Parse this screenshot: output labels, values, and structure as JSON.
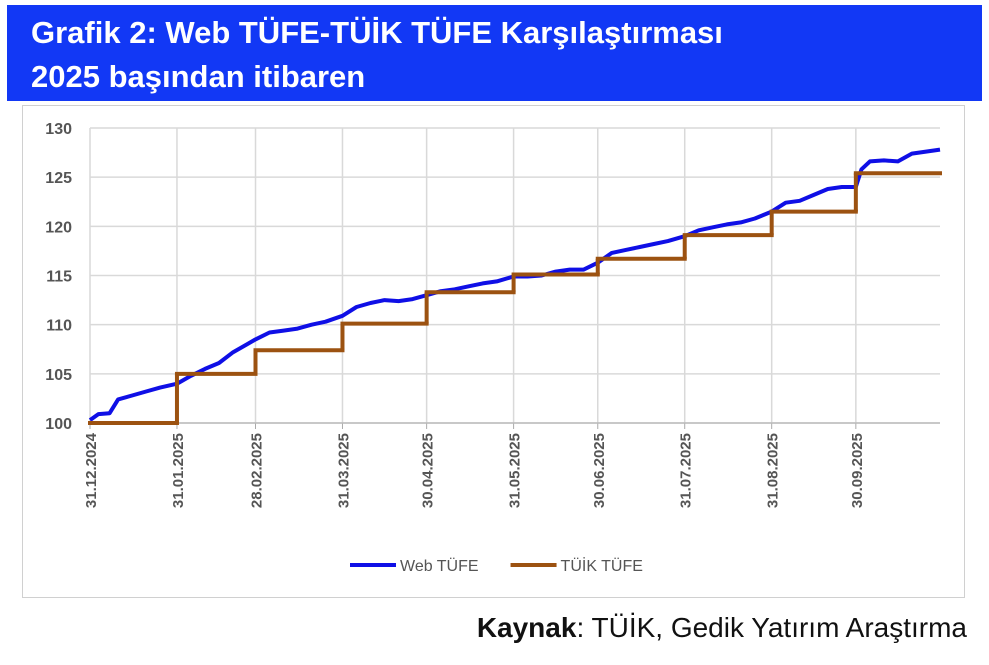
{
  "chart_data": {
    "type": "line",
    "title": "Grafik 2: Web TÜFE-TÜİK TÜFE Karşılaştırması",
    "subtitle": "2025 başından itibaren",
    "source_label": "Kaynak",
    "source": ": TÜİK, Gedik Yatırım Araştırma",
    "xlim": [
      "31.12.2024",
      "30.10.2025"
    ],
    "xticks": [
      "31.12.2024",
      "31.01.2025",
      "28.02.2025",
      "31.03.2025",
      "30.04.2025",
      "31.05.2025",
      "30.06.2025",
      "31.07.2025",
      "31.08.2025",
      "30.09.2025"
    ],
    "ylim": [
      100,
      130
    ],
    "yticks": [
      100,
      105,
      110,
      115,
      120,
      125,
      130
    ],
    "grid": true,
    "legend": "bottom",
    "series": [
      {
        "name": "Web TÜFE",
        "color": "#0f0fe6",
        "x": [
          "31.12.2024",
          "03.01.2025",
          "07.01.2025",
          "10.01.2025",
          "15.01.2025",
          "20.01.2025",
          "25.01.2025",
          "31.01.2025",
          "05.02.2025",
          "10.02.2025",
          "15.02.2025",
          "20.02.2025",
          "25.02.2025",
          "28.02.2025",
          "05.03.2025",
          "10.03.2025",
          "15.03.2025",
          "20.03.2025",
          "25.03.2025",
          "31.03.2025",
          "05.04.2025",
          "10.04.2025",
          "15.04.2025",
          "20.04.2025",
          "25.04.2025",
          "30.04.2025",
          "05.05.2025",
          "10.05.2025",
          "15.05.2025",
          "20.05.2025",
          "25.05.2025",
          "31.05.2025",
          "05.06.2025",
          "10.06.2025",
          "15.06.2025",
          "20.06.2025",
          "25.06.2025",
          "30.06.2025",
          "05.07.2025",
          "10.07.2025",
          "15.07.2025",
          "20.07.2025",
          "25.07.2025",
          "31.07.2025",
          "05.08.2025",
          "10.08.2025",
          "15.08.2025",
          "20.08.2025",
          "25.08.2025",
          "31.08.2025",
          "05.09.2025",
          "10.09.2025",
          "15.09.2025",
          "20.09.2025",
          "25.09.2025",
          "30.09.2025",
          "02.10.2025",
          "05.10.2025",
          "10.10.2025",
          "15.10.2025",
          "20.10.2025",
          "25.10.2025",
          "30.10.2025"
        ],
        "values": [
          100.3,
          100.9,
          101.0,
          102.4,
          102.8,
          103.2,
          103.6,
          104.0,
          104.8,
          105.5,
          106.1,
          107.2,
          108.0,
          108.5,
          109.2,
          109.4,
          109.6,
          110.0,
          110.3,
          110.9,
          111.8,
          112.2,
          112.5,
          112.4,
          112.6,
          113.0,
          113.4,
          113.6,
          113.9,
          114.2,
          114.4,
          114.9,
          114.9,
          115.0,
          115.4,
          115.6,
          115.6,
          116.3,
          117.3,
          117.6,
          117.9,
          118.2,
          118.5,
          119.0,
          119.6,
          119.9,
          120.2,
          120.4,
          120.8,
          121.5,
          122.4,
          122.6,
          123.2,
          123.8,
          124.0,
          124.0,
          125.8,
          126.6,
          126.7,
          126.6,
          127.4,
          127.6,
          127.8
        ]
      },
      {
        "name": "TÜİK TÜFE",
        "color": "#9c5211",
        "step": true,
        "x": [
          "31.12.2024",
          "31.01.2025",
          "28.02.2025",
          "31.03.2025",
          "30.04.2025",
          "31.05.2025",
          "30.06.2025",
          "31.07.2025",
          "31.08.2025",
          "30.09.2025",
          "30.10.2025"
        ],
        "values": [
          100,
          105.0,
          107.4,
          110.1,
          113.3,
          115.1,
          116.7,
          119.1,
          121.5,
          125.4,
          125.4
        ]
      }
    ]
  }
}
